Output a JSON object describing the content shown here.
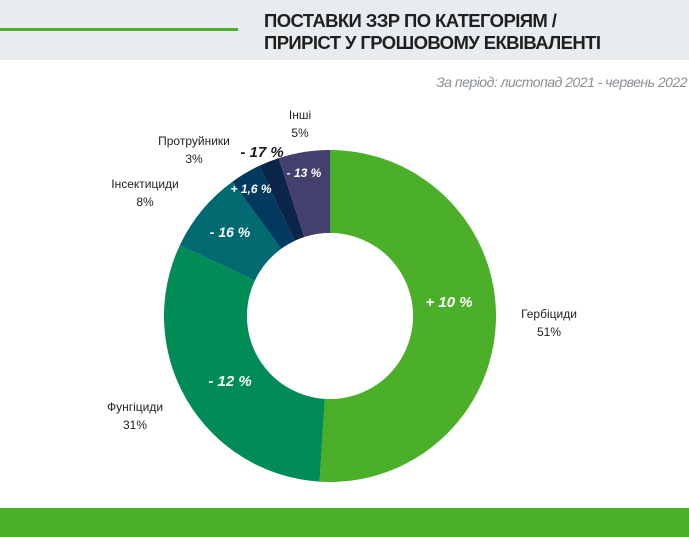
{
  "header": {
    "title_line1": "ПОСТАВКИ ЗЗР ПО КАТЕГОРІЯМ /",
    "title_line2": "ПРИРІСТ У ГРОШОВОМУ ЕКВІВАЛЕНТІ",
    "subtitle": "За період: листопад 2021 - червень 2022"
  },
  "chart_data": {
    "type": "pie",
    "series": [
      {
        "name": "Гербіциди",
        "percent_label": "51%",
        "value": 51,
        "growth": "+ 10 %",
        "color": "#4caf2a"
      },
      {
        "name": "Фунгіциди",
        "percent_label": "31%",
        "value": 31,
        "growth": "- 12 %",
        "color": "#008b57"
      },
      {
        "name": "Інсектициди",
        "percent_label": "8%",
        "value": 8,
        "growth": "- 16 %",
        "color": "#006a70"
      },
      {
        "name": "Протруйники",
        "percent_label": "3%",
        "value": 3,
        "growth": "+ 1,6 %",
        "color": "#013a5e"
      },
      {
        "name": "",
        "percent_label": "",
        "value": 2,
        "growth": "- 17 %",
        "color": "#0c2447"
      },
      {
        "name": "Інші",
        "percent_label": "5%",
        "value": 5,
        "growth": "- 13 %",
        "color": "#44406d"
      }
    ],
    "hole": "donut"
  },
  "colors": {
    "header_band": "#e9ecef",
    "accent_green": "#4caf2a"
  }
}
